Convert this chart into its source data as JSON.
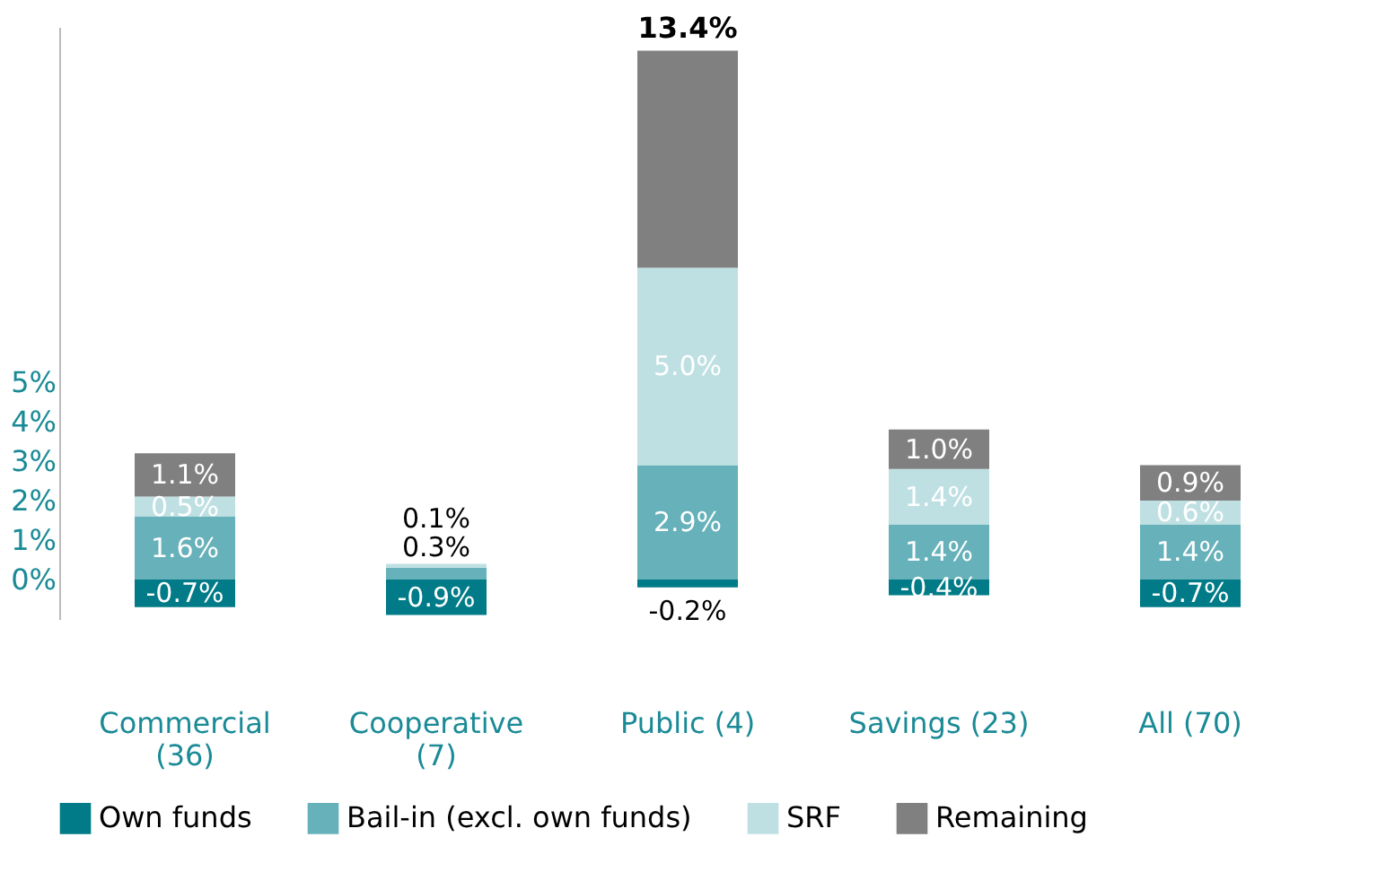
{
  "chart_data": {
    "type": "bar",
    "stacked": true,
    "categories": [
      "Commercial (36)",
      "Cooperative (7)",
      "Public (4)",
      "Savings (23)",
      "All (70)"
    ],
    "series": [
      {
        "name": "Own funds",
        "color": "#007b87",
        "values": [
          -0.7,
          -0.9,
          -0.2,
          -0.4,
          -0.7
        ],
        "value_labels": [
          "-0.7%",
          "-0.9%",
          "-0.2%",
          "-0.4%",
          "-0.7%"
        ]
      },
      {
        "name": "Bail-in (excl. own funds)",
        "color": "#66b1ba",
        "values": [
          1.6,
          0.3,
          2.9,
          1.4,
          1.4
        ],
        "value_labels": [
          "1.6%",
          "0.3%",
          "2.9%",
          "1.4%",
          "1.4%"
        ]
      },
      {
        "name": "SRF",
        "color": "#bfe0e3",
        "values": [
          0.5,
          0.1,
          5.0,
          1.4,
          0.6
        ],
        "value_labels": [
          "0.5%",
          "0.1%",
          "5.0%",
          "1.4%",
          "0.6%"
        ]
      },
      {
        "name": "Remaining",
        "color": "#808080",
        "values": [
          1.1,
          null,
          5.5,
          1.0,
          0.9
        ],
        "value_labels": [
          "1.1%",
          null,
          null,
          "1.0%",
          "0.9%"
        ]
      }
    ],
    "totals": [
      null,
      null,
      "13.4%",
      null,
      null
    ],
    "ylim": [
      -1,
      14
    ],
    "yticks": [
      {
        "value": 0,
        "label": "0%"
      },
      {
        "value": 1,
        "label": "1%"
      },
      {
        "value": 2,
        "label": "2%"
      },
      {
        "value": 3,
        "label": "3%"
      },
      {
        "value": 4,
        "label": "4%"
      },
      {
        "value": 5,
        "label": "5%"
      }
    ],
    "grid": false,
    "legend": "bottom"
  }
}
